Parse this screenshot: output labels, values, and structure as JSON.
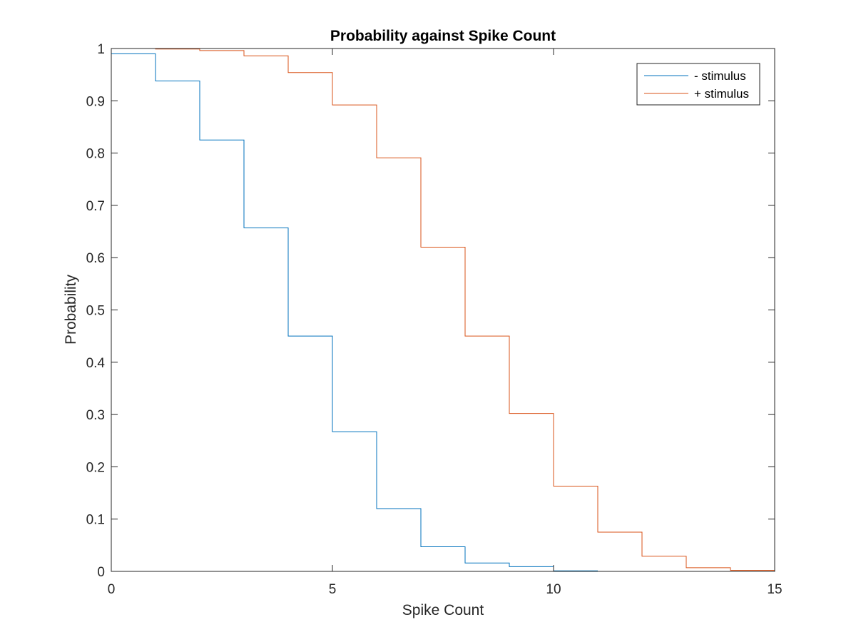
{
  "chart_data": {
    "type": "line",
    "style": "stairs",
    "title": "Probability against Spike Count",
    "xlabel": "Spike Count",
    "ylabel": "Probability",
    "xlim": [
      0,
      15
    ],
    "ylim": [
      0,
      1
    ],
    "xticks": [
      0,
      5,
      10,
      15
    ],
    "xtick_labels": [
      "0",
      "5",
      "10",
      "15"
    ],
    "yticks": [
      0,
      0.1,
      0.2,
      0.3,
      0.4,
      0.5,
      0.6,
      0.7,
      0.8,
      0.9,
      1
    ],
    "ytick_labels": [
      "0",
      "0.1",
      "0.2",
      "0.3",
      "0.4",
      "0.5",
      "0.6",
      "0.7",
      "0.8",
      "0.9",
      "1"
    ],
    "grid": false,
    "legend_position": "top-right",
    "series": [
      {
        "name": "- stimulus",
        "color": "#0072BD",
        "x": [
          0,
          1,
          2,
          3,
          4,
          5,
          6,
          7,
          8,
          9,
          10,
          11
        ],
        "y": [
          0.99,
          0.938,
          0.825,
          0.657,
          0.45,
          0.267,
          0.12,
          0.047,
          0.016,
          0.009,
          0.001,
          0.001
        ]
      },
      {
        "name": "+ stimulus",
        "color": "#D95319",
        "x": [
          0,
          1,
          2,
          3,
          4,
          5,
          6,
          7,
          8,
          9,
          10,
          11,
          12,
          13,
          14,
          15
        ],
        "y": [
          1.0,
          0.999,
          0.996,
          0.986,
          0.954,
          0.892,
          0.791,
          0.62,
          0.45,
          0.302,
          0.163,
          0.075,
          0.029,
          0.007,
          0.002,
          0.002
        ]
      }
    ]
  }
}
